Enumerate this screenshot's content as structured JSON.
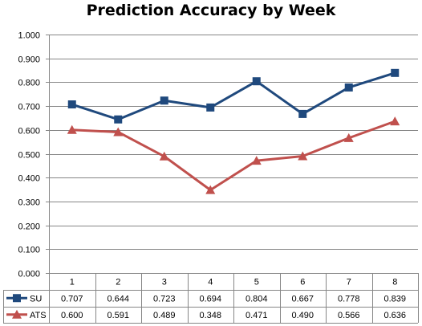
{
  "chart_data": {
    "type": "line",
    "title": "Prediction Accuracy by Week",
    "categories": [
      "1",
      "2",
      "3",
      "4",
      "5",
      "6",
      "7",
      "8"
    ],
    "y_ticks": [
      "0.000",
      "0.100",
      "0.200",
      "0.300",
      "0.400",
      "0.500",
      "0.600",
      "0.700",
      "0.800",
      "0.900",
      "1.000"
    ],
    "ylim": [
      0,
      1
    ],
    "grid": true,
    "legend": "data-table-below",
    "series": [
      {
        "name": "SU",
        "color": "#1F497D",
        "marker": "square",
        "values": [
          0.707,
          0.644,
          0.723,
          0.694,
          0.804,
          0.667,
          0.778,
          0.839
        ],
        "labels": [
          "0.707",
          "0.644",
          "0.723",
          "0.694",
          "0.804",
          "0.667",
          "0.778",
          "0.839"
        ]
      },
      {
        "name": "ATS",
        "color": "#C0504D",
        "marker": "triangle",
        "values": [
          0.6,
          0.591,
          0.489,
          0.348,
          0.471,
          0.49,
          0.566,
          0.636
        ],
        "labels": [
          "0.600",
          "0.591",
          "0.489",
          "0.348",
          "0.471",
          "0.490",
          "0.566",
          "0.636"
        ]
      }
    ]
  }
}
